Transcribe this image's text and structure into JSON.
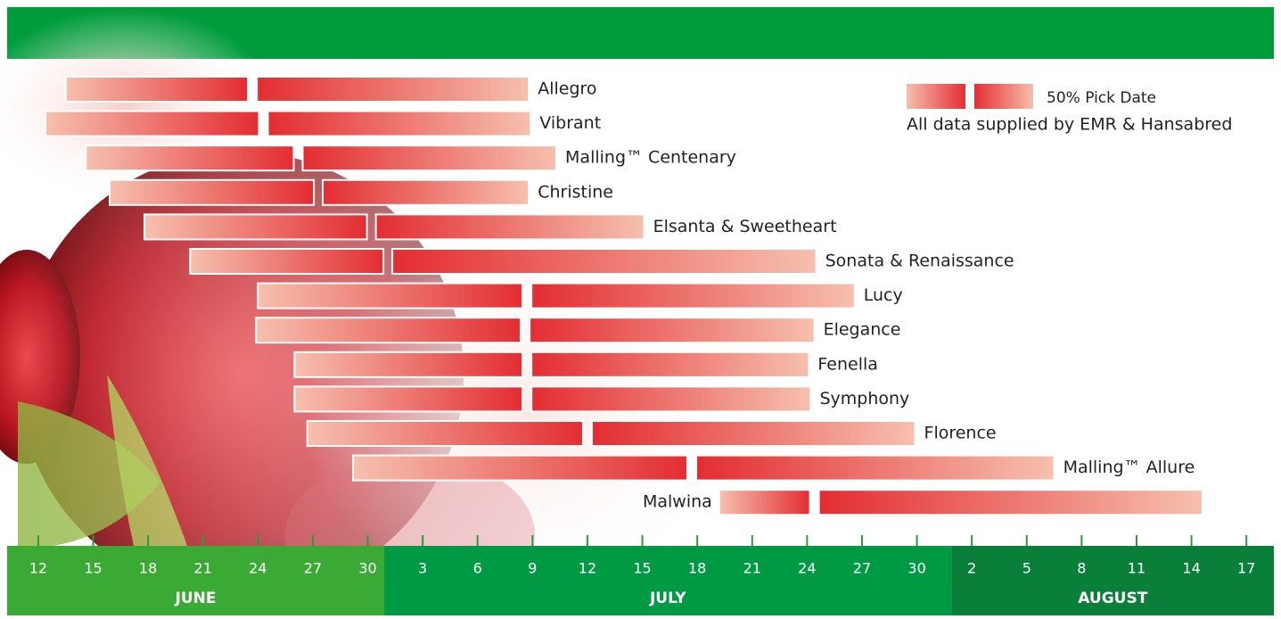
{
  "chart_data": {
    "type": "gantt",
    "xlim": [
      10.3,
      79.5
    ],
    "xticks": [
      {
        "value": 12,
        "label": "12"
      },
      {
        "value": 15,
        "label": "15"
      },
      {
        "value": 18,
        "label": "18"
      },
      {
        "value": 21,
        "label": "21"
      },
      {
        "value": 24,
        "label": "24"
      },
      {
        "value": 27,
        "label": "27"
      },
      {
        "value": 30,
        "label": "30"
      },
      {
        "value": 33,
        "label": "3"
      },
      {
        "value": 36,
        "label": "6"
      },
      {
        "value": 39,
        "label": "9"
      },
      {
        "value": 42,
        "label": "12"
      },
      {
        "value": 45,
        "label": "15"
      },
      {
        "value": 48,
        "label": "18"
      },
      {
        "value": 51,
        "label": "21"
      },
      {
        "value": 54,
        "label": "24"
      },
      {
        "value": 57,
        "label": "27"
      },
      {
        "value": 60,
        "label": "30"
      },
      {
        "value": 63,
        "label": "2"
      },
      {
        "value": 66,
        "label": "5"
      },
      {
        "value": 69,
        "label": "8"
      },
      {
        "value": 72,
        "label": "11"
      },
      {
        "value": 75,
        "label": "14"
      },
      {
        "value": 78,
        "label": "17"
      }
    ],
    "months": [
      {
        "name": "JUNE",
        "range": [
          10.3,
          30.9
        ],
        "color": "#3aaa35"
      },
      {
        "name": "JULY",
        "range": [
          30.9,
          61.9
        ],
        "color": "#009a44"
      },
      {
        "name": "AUGUST",
        "range": [
          61.9,
          79.5
        ],
        "color": "#0a7f3a"
      }
    ],
    "tasks": [
      {
        "name": "Allegro",
        "start": 13.5,
        "pick": 23.7,
        "end": 38.8
      },
      {
        "name": "Vibrant",
        "start": 12.4,
        "pick": 24.3,
        "end": 38.9
      },
      {
        "name": "Malling™ Centenary",
        "start": 14.6,
        "pick": 26.2,
        "end": 40.3
      },
      {
        "name": "Christine",
        "start": 15.9,
        "pick": 27.3,
        "end": 38.8
      },
      {
        "name": "Elsanta & Sweetheart",
        "start": 17.8,
        "pick": 30.2,
        "end": 45.1
      },
      {
        "name": "Sonata & Renaissance",
        "start": 20.3,
        "pick": 31.1,
        "end": 54.5
      },
      {
        "name": "Lucy",
        "start": 24.0,
        "pick": 38.7,
        "end": 56.6
      },
      {
        "name": "Elegance",
        "start": 23.9,
        "pick": 38.6,
        "end": 54.4
      },
      {
        "name": "Fenella",
        "start": 26.0,
        "pick": 38.7,
        "end": 54.1
      },
      {
        "name": "Symphony",
        "start": 26.0,
        "pick": 38.7,
        "end": 54.2
      },
      {
        "name": "Florence",
        "start": 26.7,
        "pick": 42.0,
        "end": 59.9
      },
      {
        "name": "Malling™ Allure",
        "start": 29.2,
        "pick": 47.7,
        "end": 67.5
      },
      {
        "name": "Malwina",
        "start": 49.2,
        "pick": 54.4,
        "end": 75.6
      }
    ],
    "legend": {
      "pick_label": "50% Pick Date",
      "note": "All data supplied by EMR & Hansabred"
    }
  }
}
